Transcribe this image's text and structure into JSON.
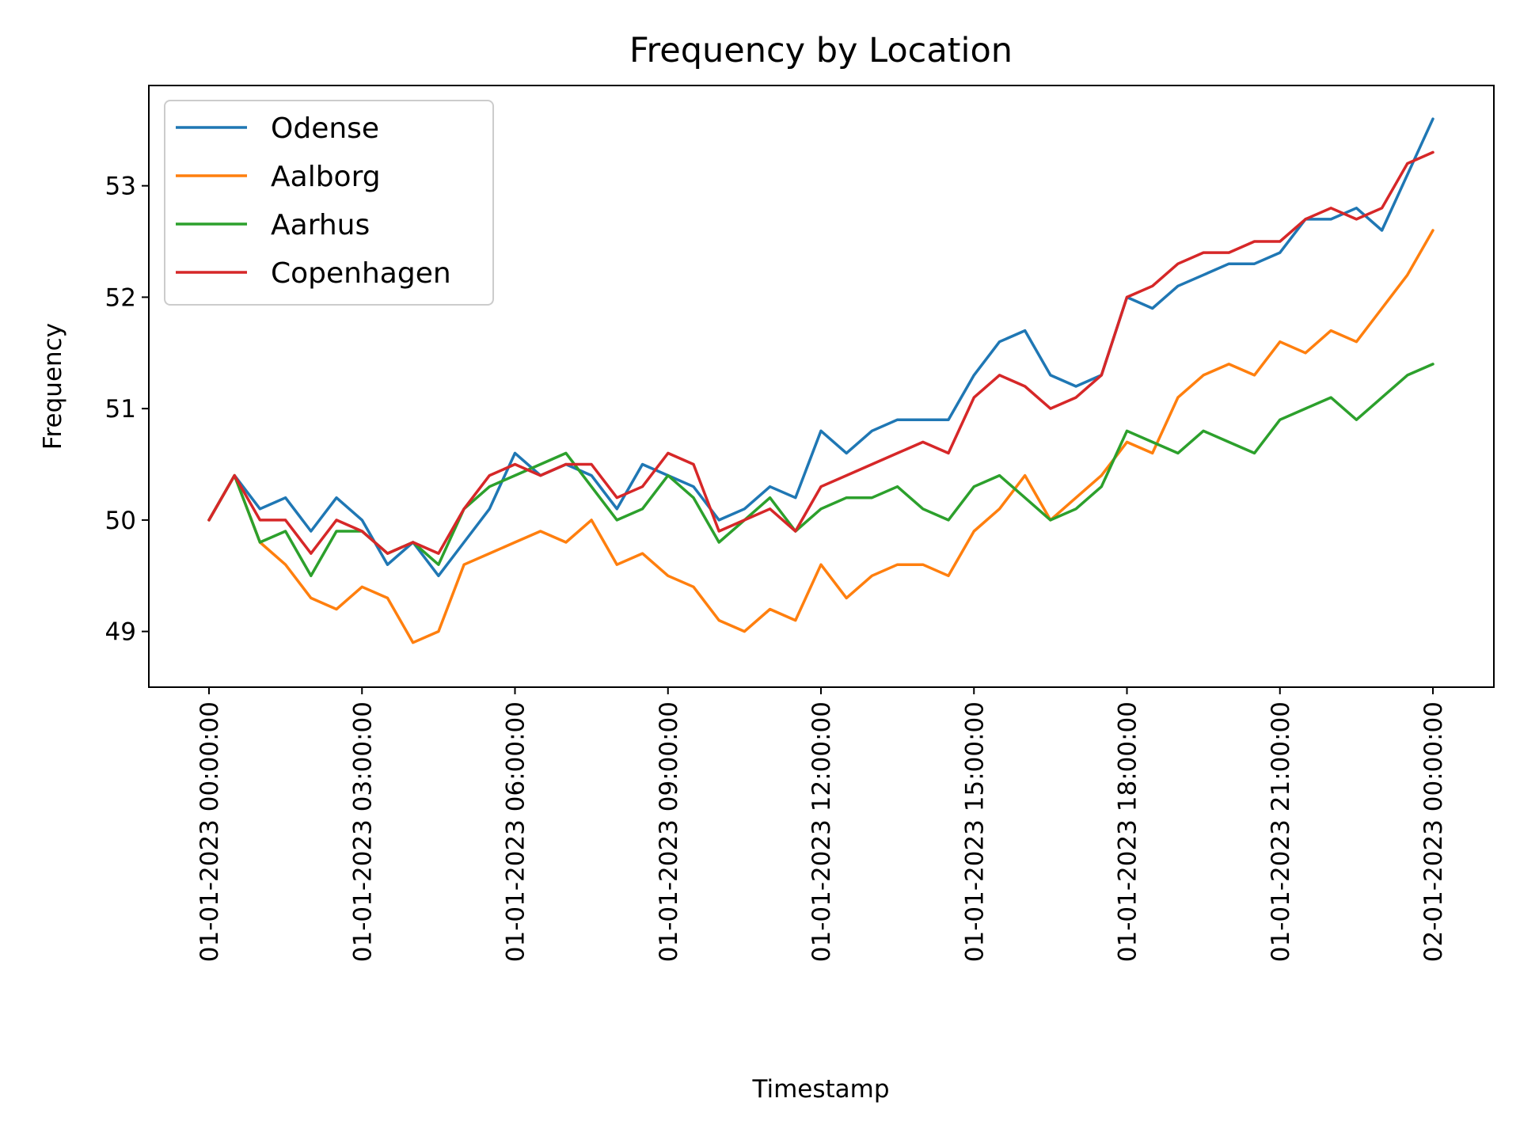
{
  "chart_data": {
    "type": "line",
    "title": "Frequency by Location",
    "xlabel": "Timestamp",
    "ylabel": "Frequency",
    "x_range": [
      "01-01-2023 00:00:00",
      "02-01-2023 00:00:00"
    ],
    "ylim": [
      48.5,
      53.9
    ],
    "grid": false,
    "legend_position": "top-left",
    "x_ticks": [
      "01-01-2023 00:00:00",
      "01-01-2023 03:00:00",
      "01-01-2023 06:00:00",
      "01-01-2023 09:00:00",
      "01-01-2023 12:00:00",
      "01-01-2023 15:00:00",
      "01-01-2023 18:00:00",
      "01-01-2023 21:00:00",
      "02-01-2023 00:00:00"
    ],
    "y_ticks": [
      49,
      50,
      51,
      52,
      53
    ],
    "x": [
      "00:00",
      "00:30",
      "01:00",
      "01:30",
      "02:00",
      "02:30",
      "03:00",
      "03:30",
      "04:00",
      "04:30",
      "05:00",
      "05:30",
      "06:00",
      "06:30",
      "07:00",
      "07:30",
      "08:00",
      "08:30",
      "09:00",
      "09:30",
      "10:00",
      "10:30",
      "11:00",
      "11:30",
      "12:00",
      "12:30",
      "13:00",
      "13:30",
      "14:00",
      "14:30",
      "15:00",
      "15:30",
      "16:00",
      "16:30",
      "17:00",
      "17:30",
      "18:00",
      "18:30",
      "19:00",
      "19:30",
      "20:00",
      "20:30",
      "21:00",
      "21:30",
      "22:00",
      "22:30",
      "23:00",
      "23:30",
      "24:00"
    ],
    "series": [
      {
        "name": "Odense",
        "color": "#1f77b4",
        "values": [
          50.0,
          50.4,
          50.1,
          50.2,
          49.9,
          50.2,
          50.0,
          49.6,
          49.8,
          49.5,
          49.8,
          50.1,
          50.6,
          50.4,
          50.5,
          50.4,
          50.1,
          50.5,
          50.4,
          50.3,
          50.0,
          50.1,
          50.3,
          50.2,
          50.8,
          50.6,
          50.8,
          50.9,
          50.9,
          50.9,
          51.3,
          51.6,
          51.7,
          51.3,
          51.2,
          51.3,
          52.0,
          51.9,
          52.1,
          52.2,
          52.3,
          52.3,
          52.4,
          52.7,
          52.7,
          52.8,
          52.6,
          53.1,
          53.6
        ]
      },
      {
        "name": "Aalborg",
        "color": "#ff7f0e",
        "values": [
          50.0,
          50.4,
          49.8,
          49.6,
          49.3,
          49.2,
          49.4,
          49.3,
          48.9,
          49.0,
          49.6,
          49.7,
          49.8,
          49.9,
          49.8,
          50.0,
          49.6,
          49.7,
          49.5,
          49.4,
          49.1,
          49.0,
          49.2,
          49.1,
          49.6,
          49.3,
          49.5,
          49.6,
          49.6,
          49.5,
          49.9,
          50.1,
          50.4,
          50.0,
          50.2,
          50.4,
          50.7,
          50.6,
          51.1,
          51.3,
          51.4,
          51.3,
          51.6,
          51.5,
          51.7,
          51.6,
          51.9,
          52.2,
          52.6
        ]
      },
      {
        "name": "Aarhus",
        "color": "#2ca02c",
        "values": [
          50.0,
          50.4,
          49.8,
          49.9,
          49.5,
          49.9,
          49.9,
          49.7,
          49.8,
          49.6,
          50.1,
          50.3,
          50.4,
          50.5,
          50.6,
          50.3,
          50.0,
          50.1,
          50.4,
          50.2,
          49.8,
          50.0,
          50.2,
          49.9,
          50.1,
          50.2,
          50.2,
          50.3,
          50.1,
          50.0,
          50.3,
          50.4,
          50.2,
          50.0,
          50.1,
          50.3,
          50.8,
          50.7,
          50.6,
          50.8,
          50.7,
          50.6,
          50.9,
          51.0,
          51.1,
          50.9,
          51.1,
          51.3,
          51.4
        ]
      },
      {
        "name": "Copenhagen",
        "color": "#d62728",
        "values": [
          50.0,
          50.4,
          50.0,
          50.0,
          49.7,
          50.0,
          49.9,
          49.7,
          49.8,
          49.7,
          50.1,
          50.4,
          50.5,
          50.4,
          50.5,
          50.5,
          50.2,
          50.3,
          50.6,
          50.5,
          49.9,
          50.0,
          50.1,
          49.9,
          50.3,
          50.4,
          50.5,
          50.6,
          50.7,
          50.6,
          51.1,
          51.3,
          51.2,
          51.0,
          51.1,
          51.3,
          52.0,
          52.1,
          52.3,
          52.4,
          52.4,
          52.5,
          52.5,
          52.7,
          52.8,
          52.7,
          52.8,
          53.2,
          53.3
        ]
      }
    ]
  }
}
